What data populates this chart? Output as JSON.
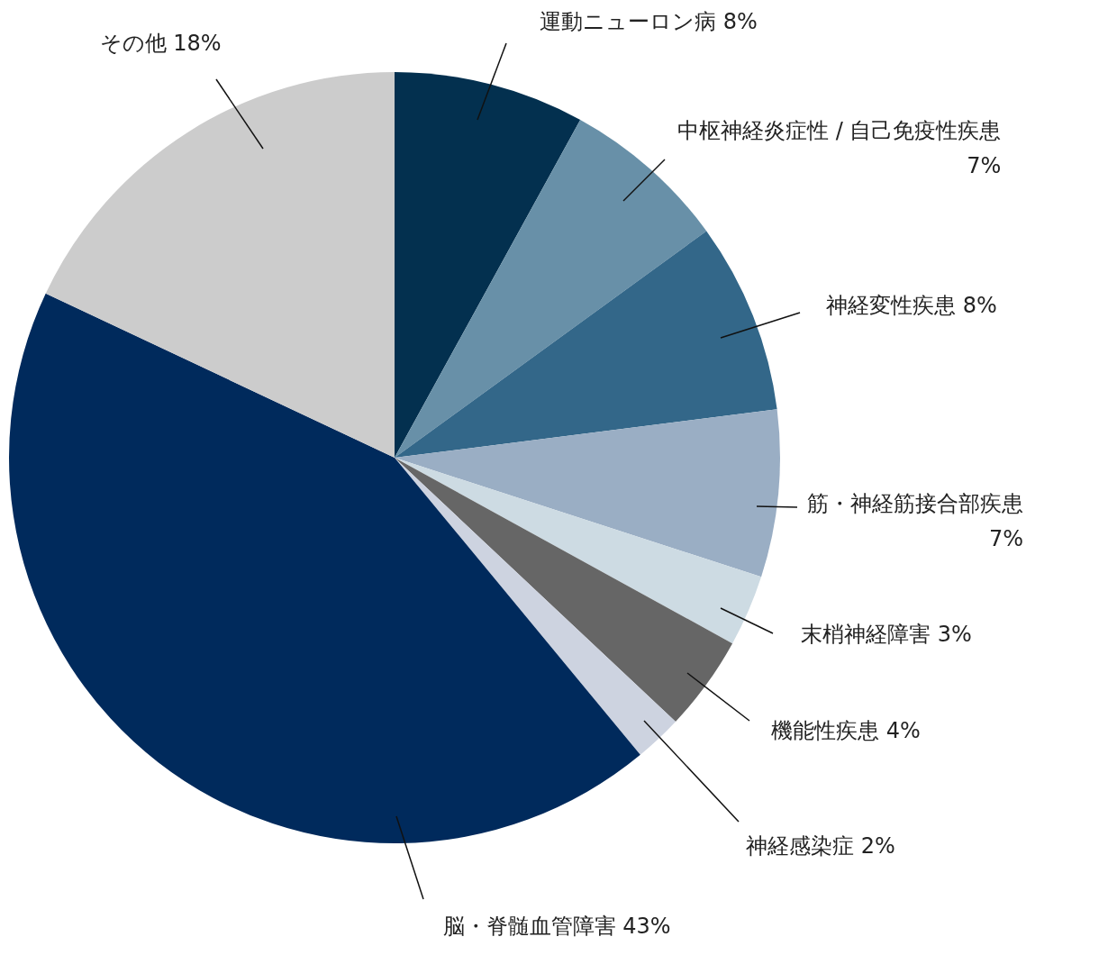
{
  "chart_data": {
    "type": "pie",
    "categories": [
      "運動ニューロン病",
      "中枢神経炎症性 / 自己免疫性疾患",
      "神経変性疾患",
      "筋・神経筋接合部疾患",
      "末梢神経障害",
      "機能性疾患",
      "神経感染症",
      "脳・脊髄血管障害",
      "その他"
    ],
    "values": [
      8,
      7,
      8,
      7,
      3,
      4,
      2,
      43,
      18
    ],
    "value_labels": [
      "8%",
      "7%",
      "8%",
      "7%",
      "3%",
      "4%",
      "2%",
      "43%",
      "18%"
    ],
    "colors": [
      "#03304f",
      "#6890a8",
      "#336789",
      "#9aaec4",
      "#cddbe3",
      "#666666",
      "#cdd3e0",
      "#002a5c",
      "#cccccc"
    ],
    "legend": false
  }
}
